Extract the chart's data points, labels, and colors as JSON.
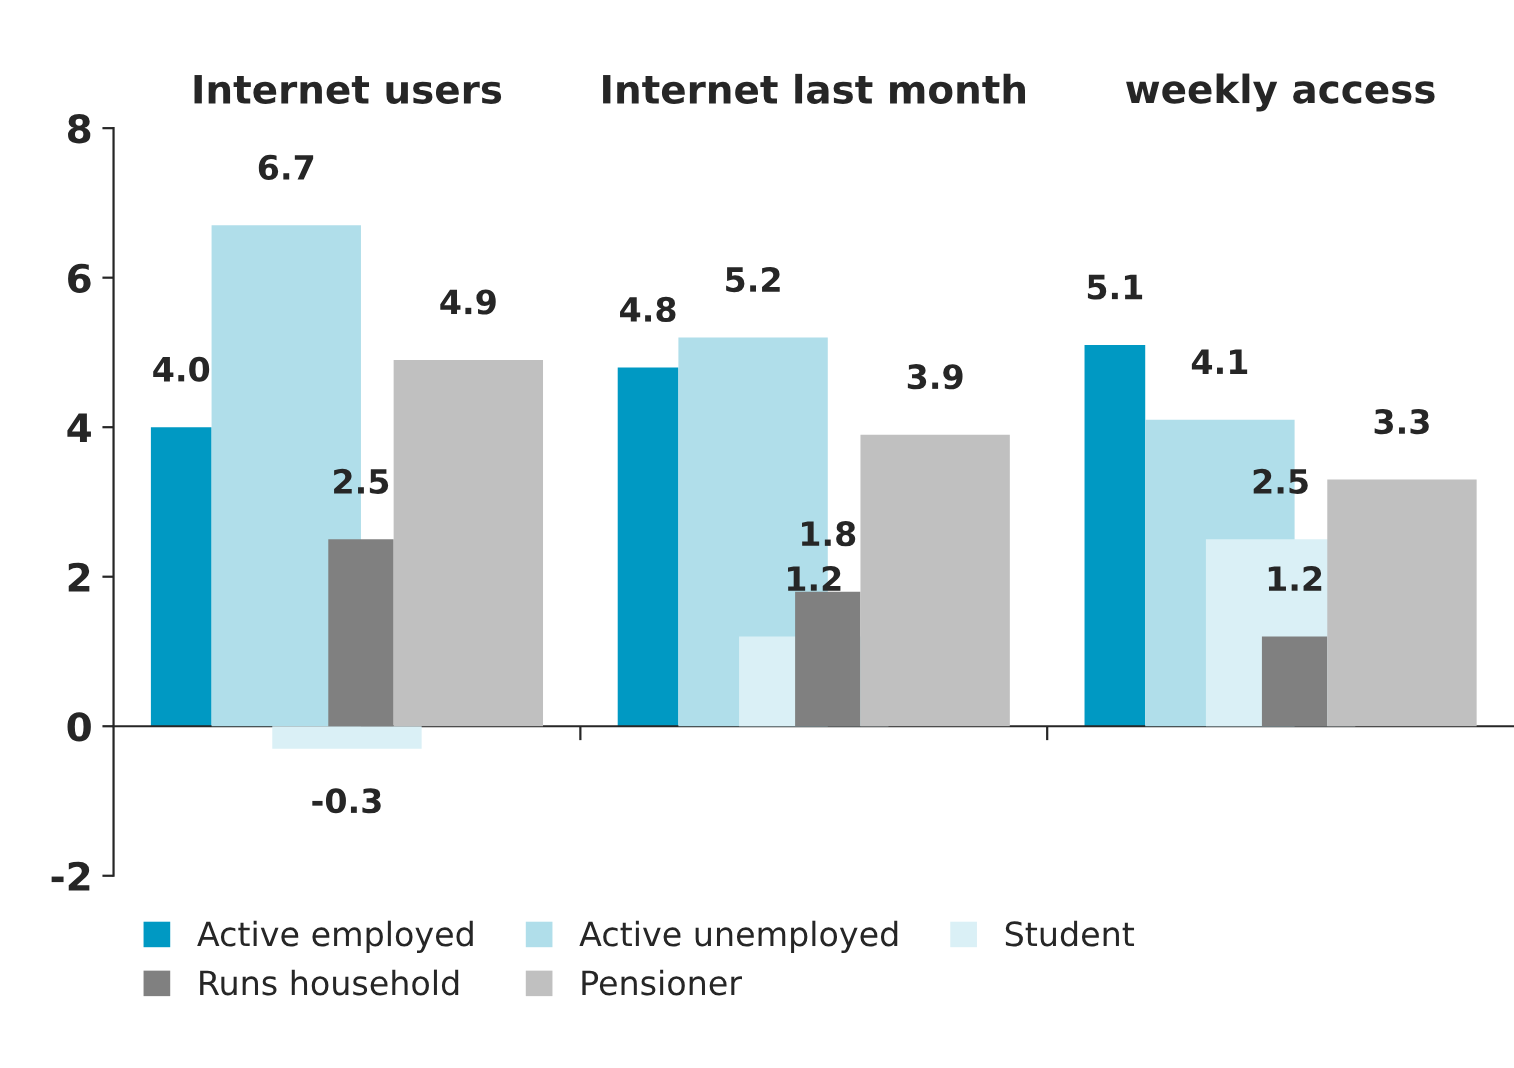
{
  "chart_data": {
    "type": "bar",
    "categories": [
      "Internet users",
      "Internet last month",
      "weekly access"
    ],
    "series": [
      {
        "name": "Active employed",
        "color": "#0099c3",
        "values": [
          4.0,
          4.8,
          5.1
        ],
        "value_labels": [
          "4.0",
          "4.8",
          "5.1"
        ]
      },
      {
        "name": "Active unemployed",
        "color": "#b0deea",
        "values": [
          6.7,
          5.2,
          4.1
        ],
        "value_labels": [
          "6.7",
          "5.2",
          "4.1"
        ]
      },
      {
        "name": "Student",
        "color": "#daf0f6",
        "values": [
          -0.3,
          1.2,
          2.5
        ],
        "value_labels": [
          "-0.3",
          "1.2",
          "2.5"
        ]
      },
      {
        "name": "Runs household",
        "color": "#808080",
        "values": [
          2.5,
          1.8,
          1.2
        ],
        "value_labels": [
          "2.5",
          "1.8",
          "1.2"
        ]
      },
      {
        "name": "Pensioner",
        "color": "#c0c0c0",
        "values": [
          4.9,
          3.9,
          3.3
        ],
        "value_labels": [
          "4.9",
          "3.9",
          "3.3"
        ]
      }
    ],
    "ylim": [
      -2,
      8
    ],
    "yticks": [
      -2,
      0,
      2,
      4,
      6,
      8
    ],
    "legend": "bottom"
  }
}
